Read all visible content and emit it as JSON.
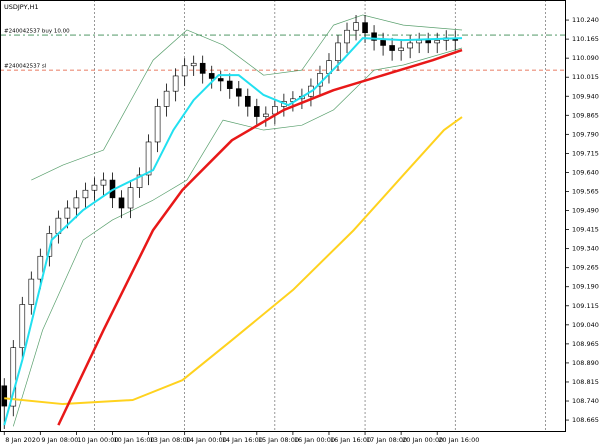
{
  "chart_data": {
    "type": "candlestick",
    "title": "USDJPY,H1",
    "up_color": "#ffffff",
    "down_color": "#000000",
    "x": [
      0,
      4,
      8,
      12,
      16,
      20,
      24,
      28,
      32,
      36,
      40,
      44,
      48,
      52,
      56,
      60,
      64,
      68,
      72,
      76,
      80,
      84,
      88,
      92,
      96,
      100,
      104,
      108,
      112,
      116,
      120,
      124,
      128,
      132,
      136,
      140,
      144,
      148,
      152,
      156,
      160,
      164,
      168,
      172,
      176,
      180,
      184,
      188,
      192,
      196,
      200
    ],
    "open": [
      108.8,
      108.72,
      108.95,
      109.12,
      109.22,
      109.31,
      109.4,
      109.46,
      109.5,
      109.54,
      109.57,
      109.59,
      109.61,
      109.54,
      109.5,
      109.58,
      109.63,
      109.76,
      109.9,
      109.96,
      110.02,
      110.06,
      110.07,
      110.03,
      110.01,
      110.0,
      109.97,
      109.94,
      109.9,
      109.86,
      109.87,
      109.9,
      109.92,
      109.93,
      109.94,
      109.98,
      110.03,
      110.08,
      110.15,
      110.2,
      110.23,
      110.19,
      110.16,
      110.14,
      110.12,
      110.13,
      110.15,
      110.16,
      110.15,
      110.16,
      110.17
    ],
    "high": [
      108.83,
      108.98,
      109.15,
      109.25,
      109.34,
      109.43,
      109.49,
      109.53,
      109.57,
      109.6,
      109.62,
      109.64,
      109.64,
      109.57,
      109.61,
      109.66,
      109.79,
      109.93,
      109.99,
      110.05,
      110.09,
      110.1,
      110.1,
      110.06,
      110.04,
      110.03,
      110.0,
      109.97,
      109.93,
      109.9,
      109.93,
      109.95,
      109.96,
      109.97,
      110.01,
      110.06,
      110.11,
      110.18,
      110.23,
      110.26,
      110.26,
      110.22,
      110.19,
      110.17,
      110.16,
      110.18,
      110.19,
      110.19,
      110.19,
      110.2,
      110.2
    ],
    "low": [
      108.63,
      108.68,
      108.91,
      109.08,
      109.18,
      109.27,
      109.36,
      109.42,
      109.46,
      109.5,
      109.53,
      109.55,
      109.5,
      109.46,
      109.46,
      109.54,
      109.59,
      109.72,
      109.86,
      109.92,
      109.98,
      110.02,
      109.99,
      109.97,
      109.96,
      109.93,
      109.9,
      109.86,
      109.82,
      109.82,
      109.83,
      109.86,
      109.88,
      109.89,
      109.9,
      109.94,
      109.99,
      110.04,
      110.11,
      110.16,
      110.15,
      110.12,
      110.1,
      110.08,
      110.08,
      110.09,
      110.11,
      110.11,
      110.11,
      110.12,
      110.12
    ],
    "close": [
      108.72,
      108.95,
      109.12,
      109.22,
      109.31,
      109.4,
      109.46,
      109.5,
      109.54,
      109.57,
      109.59,
      109.61,
      109.54,
      109.5,
      109.58,
      109.63,
      109.76,
      109.9,
      109.96,
      110.02,
      110.06,
      110.07,
      110.03,
      110.01,
      110.0,
      109.97,
      109.94,
      109.9,
      109.86,
      109.87,
      109.9,
      109.92,
      109.93,
      109.94,
      109.98,
      110.03,
      110.08,
      110.15,
      110.2,
      110.23,
      110.19,
      110.16,
      110.14,
      110.12,
      110.13,
      110.15,
      110.16,
      110.15,
      110.16,
      110.17,
      110.16
    ],
    "lines": [
      {
        "color": "#5aa06e",
        "width": 0.7,
        "x": [
          12,
          26,
          44,
          66,
          81,
          97,
          115,
          132,
          146,
          159,
          177,
          203
        ],
        "values": [
          109.61,
          109.669,
          109.728,
          110.082,
          110.201,
          110.142,
          110.023,
          110.043,
          110.22,
          110.26,
          110.22,
          110.201
        ]
      },
      {
        "color": "#5aa06e",
        "width": 0.7,
        "x": [
          4,
          17,
          35,
          48,
          66,
          81,
          97,
          115,
          132,
          146,
          164,
          177,
          203
        ],
        "values": [
          108.64,
          109.019,
          109.374,
          109.453,
          109.531,
          109.61,
          109.846,
          109.807,
          109.826,
          109.886,
          110.043,
          110.063,
          110.13
        ]
      },
      {
        "color": "#ffd21e",
        "width": 2,
        "x": [
          0,
          26,
          57,
          79,
          101,
          128,
          155,
          177,
          195,
          203
        ],
        "values": [
          108.751,
          108.728,
          108.744,
          108.822,
          108.98,
          109.177,
          109.413,
          109.63,
          109.807,
          109.858
        ]
      },
      {
        "color": "#e81818",
        "width": 2.5,
        "x": [
          24,
          44,
          66,
          79,
          101,
          124,
          146,
          168,
          190,
          203
        ],
        "values": [
          108.645,
          109.019,
          109.413,
          109.571,
          109.767,
          109.886,
          109.964,
          110.023,
          110.082,
          110.122
        ]
      },
      {
        "color": "#22e0f0",
        "width": 2,
        "x": [
          0,
          8,
          21,
          35,
          48,
          66,
          75,
          84,
          95,
          104,
          115,
          126,
          137,
          150,
          159,
          177,
          203
        ],
        "values": [
          108.645,
          108.901,
          109.374,
          109.492,
          109.571,
          109.649,
          109.807,
          109.925,
          110.023,
          110.023,
          109.945,
          109.905,
          109.964,
          110.082,
          110.169,
          110.161,
          110.169
        ]
      }
    ],
    "hlines": [
      {
        "value": 110.181,
        "label": "#240042537 buy 10.00",
        "color": "#3a8a50",
        "dash": "6 3 2 3"
      },
      {
        "value": 110.043,
        "label": "#240042537 sl",
        "color": "#e05030",
        "dash": "4 3"
      }
    ],
    "grid_x": [
      40,
      80,
      120,
      160,
      200,
      240
    ],
    "xlim": [
      -1,
      250
    ],
    "ylim": [
      108.618,
      110.319
    ],
    "xticks": [
      {
        "value": 0,
        "label": "8 Jan 2020"
      },
      {
        "value": 16,
        "label": "9 Jan 08:00"
      },
      {
        "value": 32,
        "label": "10 Jan 00:00"
      },
      {
        "value": 48,
        "label": "10 Jan 16:00"
      },
      {
        "value": 64,
        "label": "13 Jan 08:00"
      },
      {
        "value": 80,
        "label": "14 Jan 00:00"
      },
      {
        "value": 96,
        "label": "14 Jan 16:00"
      },
      {
        "value": 112,
        "label": "15 Jan 08:00"
      },
      {
        "value": 128,
        "label": "16 Jan 00:00"
      },
      {
        "value": 144,
        "label": "16 Jan 16:00"
      },
      {
        "value": 160,
        "label": "17 Jan 08:00"
      },
      {
        "value": 176,
        "label": "20 Jan 00:00"
      },
      {
        "value": 192,
        "label": "20 Jan 16:00"
      }
    ],
    "yticks": [
      {
        "value": 110.24,
        "label": "110.240"
      },
      110.165,
      {
        "value": 110.09,
        "label": "110.090"
      },
      110.015,
      {
        "value": 109.94,
        "label": "109.940"
      },
      109.865,
      {
        "value": 109.79,
        "label": "109.790"
      },
      109.715,
      {
        "value": 109.64,
        "label": "109.640"
      },
      109.565,
      {
        "value": 109.49,
        "label": "109.490"
      },
      109.415,
      {
        "value": 109.34,
        "label": "109.340"
      },
      109.265,
      {
        "value": 109.19,
        "label": "109.190"
      },
      109.115,
      {
        "value": 109.04,
        "label": "109.040"
      },
      108.965,
      {
        "value": 108.89,
        "label": "108.890"
      },
      108.815,
      {
        "value": 108.74,
        "label": "108.740"
      },
      108.665
    ]
  }
}
